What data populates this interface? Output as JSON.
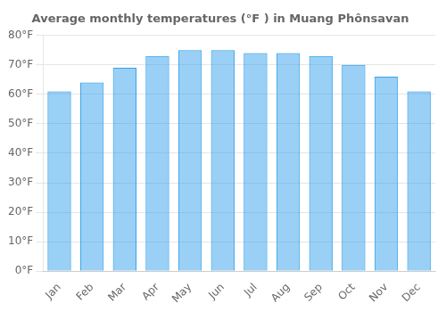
{
  "chart_data": {
    "type": "bar",
    "title": "Average monthly temperatures (°F ) in Muang Phônsavan",
    "categories": [
      "Jan",
      "Feb",
      "Mar",
      "Apr",
      "May",
      "Jun",
      "Jul",
      "Aug",
      "Sep",
      "Oct",
      "Nov",
      "Dec"
    ],
    "values": [
      61,
      64,
      69,
      73,
      75,
      75,
      74,
      74,
      73,
      70,
      66,
      61
    ],
    "ylim": [
      0,
      80
    ],
    "yticks": [
      {
        "value": 0,
        "label": "0°F"
      },
      {
        "value": 10,
        "label": "10°F"
      },
      {
        "value": 20,
        "label": "20°F"
      },
      {
        "value": 30,
        "label": "30°F"
      },
      {
        "value": 40,
        "label": "40°F"
      },
      {
        "value": 50,
        "label": "50°F"
      },
      {
        "value": 60,
        "label": "60°F"
      },
      {
        "value": 70,
        "label": "70°F"
      },
      {
        "value": 80,
        "label": "80°F"
      }
    ],
    "grid": true
  }
}
